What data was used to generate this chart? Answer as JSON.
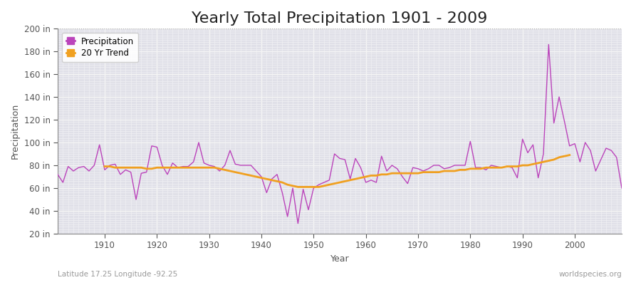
{
  "title": "Yearly Total Precipitation 1901 - 2009",
  "xlabel": "Year",
  "ylabel": "Precipitation",
  "bottom_left_label": "Latitude 17.25 Longitude -92.25",
  "bottom_right_label": "worldspecies.org",
  "years": [
    1901,
    1902,
    1903,
    1904,
    1905,
    1906,
    1907,
    1908,
    1909,
    1910,
    1911,
    1912,
    1913,
    1914,
    1915,
    1916,
    1917,
    1918,
    1919,
    1920,
    1921,
    1922,
    1923,
    1924,
    1925,
    1926,
    1927,
    1928,
    1929,
    1930,
    1931,
    1932,
    1933,
    1934,
    1935,
    1936,
    1937,
    1938,
    1939,
    1940,
    1941,
    1942,
    1943,
    1944,
    1945,
    1946,
    1947,
    1948,
    1949,
    1950,
    1951,
    1952,
    1953,
    1954,
    1955,
    1956,
    1957,
    1958,
    1959,
    1960,
    1961,
    1962,
    1963,
    1964,
    1965,
    1966,
    1967,
    1968,
    1969,
    1970,
    1971,
    1972,
    1973,
    1974,
    1975,
    1976,
    1977,
    1978,
    1979,
    1980,
    1981,
    1982,
    1983,
    1984,
    1985,
    1986,
    1987,
    1988,
    1989,
    1990,
    1991,
    1992,
    1993,
    1994,
    1995,
    1996,
    1997,
    1998,
    1999,
    2000,
    2001,
    2002,
    2003,
    2004,
    2005,
    2006,
    2007,
    2008,
    2009
  ],
  "precipitation": [
    72,
    65,
    79,
    75,
    78,
    79,
    75,
    80,
    98,
    76,
    80,
    81,
    72,
    76,
    74,
    50,
    73,
    74,
    97,
    96,
    80,
    72,
    82,
    78,
    79,
    79,
    83,
    100,
    82,
    80,
    79,
    75,
    80,
    93,
    81,
    80,
    80,
    80,
    75,
    70,
    56,
    68,
    72,
    56,
    35,
    60,
    29,
    59,
    41,
    60,
    63,
    65,
    67,
    90,
    86,
    85,
    68,
    86,
    78,
    65,
    67,
    65,
    88,
    75,
    80,
    77,
    70,
    64,
    78,
    77,
    75,
    77,
    80,
    80,
    77,
    78,
    80,
    80,
    80,
    101,
    78,
    78,
    76,
    80,
    79,
    78,
    79,
    78,
    69,
    103,
    91,
    98,
    69,
    90,
    186,
    117,
    140,
    119,
    97,
    99,
    83,
    100,
    93,
    75,
    85,
    95,
    93,
    87,
    60
  ],
  "trend": [
    null,
    null,
    null,
    null,
    null,
    null,
    null,
    null,
    null,
    79,
    79,
    78,
    78,
    78,
    78,
    78,
    78,
    77,
    77,
    78,
    78,
    78,
    78,
    78,
    78,
    78,
    78,
    78,
    78,
    78,
    78,
    77,
    76,
    75,
    74,
    73,
    72,
    71,
    70,
    69,
    68,
    67,
    66,
    65,
    63,
    62,
    61,
    61,
    61,
    61,
    61,
    62,
    63,
    64,
    65,
    66,
    67,
    68,
    69,
    70,
    71,
    71,
    72,
    72,
    73,
    73,
    73,
    73,
    73,
    73,
    74,
    74,
    74,
    74,
    75,
    75,
    75,
    76,
    76,
    77,
    77,
    77,
    78,
    78,
    78,
    78,
    79,
    79,
    79,
    80,
    80,
    81,
    82,
    83,
    84,
    85,
    87,
    88,
    89,
    null,
    null,
    null,
    null,
    null,
    null,
    null,
    null,
    null,
    null
  ],
  "precip_color": "#bb44bb",
  "trend_color": "#f0a020",
  "ylim": [
    20,
    200
  ],
  "yticks": [
    20,
    40,
    60,
    80,
    100,
    120,
    140,
    160,
    180,
    200
  ],
  "xlim": [
    1901,
    2009
  ],
  "xticks": [
    1910,
    1920,
    1930,
    1940,
    1950,
    1960,
    1970,
    1980,
    1990,
    2000
  ],
  "outer_bg": "#ffffff",
  "plot_bg_color": "#e0e0e8",
  "grid_major_color": "#f5f5f5",
  "grid_minor_color": "#f0f0f4",
  "title_fontsize": 16,
  "label_fontsize": 9,
  "tick_fontsize": 8.5
}
